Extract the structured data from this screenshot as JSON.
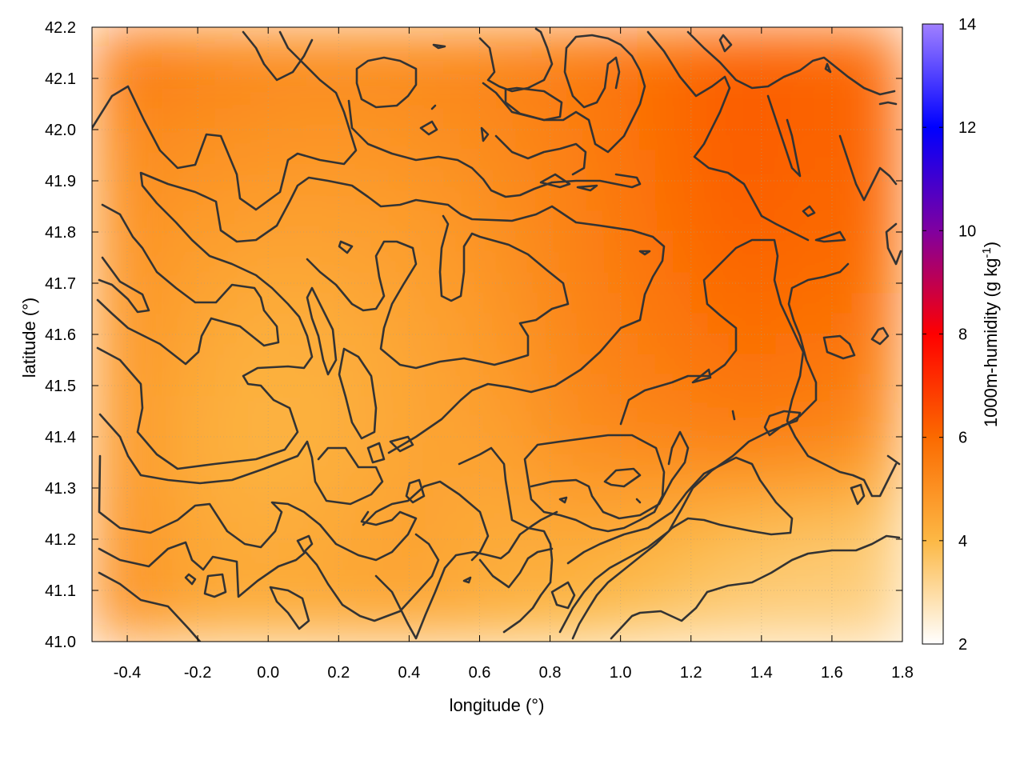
{
  "chart_data": {
    "type": "heatmap",
    "title": "",
    "xlabel": "longitude (°)",
    "ylabel": "latitude (°)",
    "xlim": [
      -0.5,
      1.8
    ],
    "ylim": [
      41.0,
      42.2
    ],
    "xticks": [
      "-0.4",
      "-0.2",
      "0.0",
      "0.2",
      "0.4",
      "0.6",
      "0.8",
      "1.0",
      "1.2",
      "1.4",
      "1.6",
      "1.8"
    ],
    "yticks": [
      "41.0",
      "41.1",
      "41.2",
      "41.3",
      "41.4",
      "41.5",
      "41.6",
      "41.7",
      "41.8",
      "41.9",
      "42.0",
      "42.1",
      "42.2"
    ],
    "grid": true,
    "colorbar": {
      "label": "1000m-humidity (g kg-1)",
      "label_main": "1000m-humidity (g kg",
      "label_sup": "-1",
      "label_tail": ")",
      "range": [
        2,
        14
      ],
      "ticks": [
        "2",
        "4",
        "6",
        "8",
        "10",
        "12",
        "14"
      ],
      "stops": [
        {
          "value": 2,
          "color": "#ffffff"
        },
        {
          "value": 4,
          "color": "#fcb845"
        },
        {
          "value": 6,
          "color": "#fb6a00"
        },
        {
          "value": 8,
          "color": "#ff0000"
        },
        {
          "value": 10,
          "color": "#8000a0"
        },
        {
          "value": 12,
          "color": "#0000ff"
        },
        {
          "value": 14,
          "color": "#a080ff"
        }
      ]
    },
    "field": {
      "lon": [
        -0.5,
        -0.27,
        -0.04,
        0.19,
        0.42,
        0.65,
        0.88,
        1.11,
        1.34,
        1.57,
        1.8
      ],
      "lat": [
        42.2,
        42.0,
        41.8,
        41.6,
        41.4,
        41.2,
        41.0
      ],
      "humidity": [
        [
          6.0,
          5.6,
          5.3,
          5.2,
          5.3,
          5.4,
          5.6,
          5.9,
          6.2,
          6.1,
          6.0
        ],
        [
          5.3,
          5.1,
          5.0,
          4.9,
          5.0,
          5.2,
          5.5,
          5.9,
          6.3,
          6.1,
          6.2
        ],
        [
          5.1,
          4.8,
          4.6,
          4.6,
          4.7,
          5.0,
          5.4,
          5.8,
          6.2,
          6.0,
          6.1
        ],
        [
          5.0,
          4.6,
          4.2,
          4.3,
          4.5,
          4.8,
          5.3,
          5.6,
          5.9,
          5.8,
          5.6
        ],
        [
          5.1,
          4.4,
          4.1,
          4.2,
          4.5,
          4.6,
          5.1,
          5.3,
          5.5,
          5.4,
          5.0
        ],
        [
          5.2,
          4.5,
          4.3,
          4.4,
          4.6,
          4.3,
          4.4,
          4.2,
          3.8,
          3.6,
          3.5
        ],
        [
          5.5,
          4.6,
          4.3,
          4.4,
          4.4,
          4.2,
          3.9,
          3.5,
          3.3,
          3.3,
          3.4
        ]
      ]
    },
    "contour_levels": [
      4.25,
      4.5,
      4.75,
      5.0,
      5.25,
      5.5
    ]
  }
}
